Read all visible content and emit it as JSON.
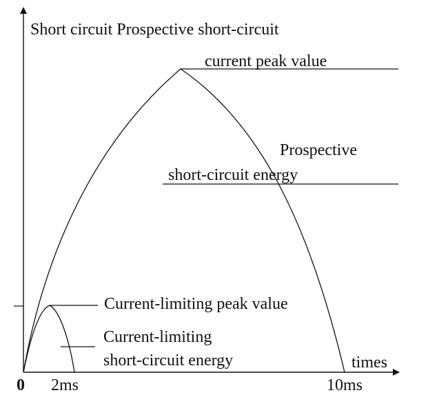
{
  "labels": {
    "y_axis_title": "Short circuit Prospective short-circuit",
    "prospective_peak": "current peak value",
    "prospective_energy_line1": "Prospective",
    "prospective_energy_line2": "short-circuit energy",
    "limiting_peak": "Current-limiting peak value",
    "limiting_energy_line1": "Current-limiting",
    "limiting_energy_line2": "short-circuit energy",
    "x_axis_title": "times",
    "origin": "0",
    "tick_2ms": "2ms",
    "tick_10ms": "10ms"
  },
  "colors": {
    "stroke": "#111111",
    "background": "#ffffff"
  }
}
